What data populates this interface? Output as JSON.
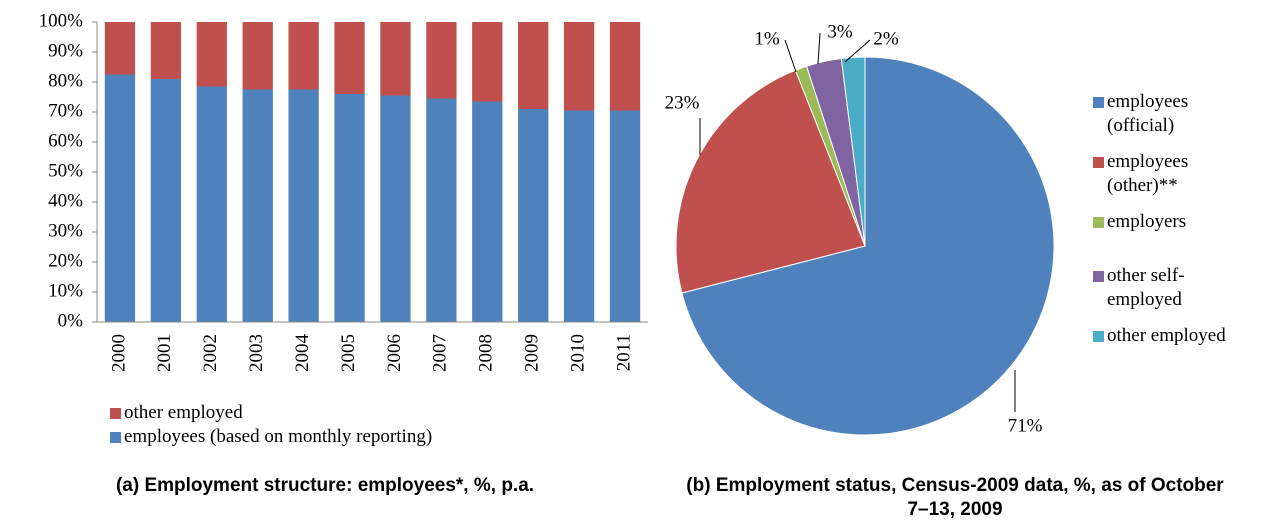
{
  "chart_data": [
    {
      "type": "stacked_bar",
      "title": "(a) Employment structure: employees*, %, p.a.",
      "categories": [
        "2000",
        "2001",
        "2002",
        "2003",
        "2004",
        "2005",
        "2006",
        "2007",
        "2008",
        "2009",
        "2010",
        "2011"
      ],
      "series": [
        {
          "name": "employees (based on monthly reporting)",
          "color": "#4f81bd",
          "values": [
            82.5,
            81,
            78.5,
            77.5,
            77.5,
            76,
            75.5,
            74.5,
            73.5,
            71,
            70.5,
            70.5
          ]
        },
        {
          "name": "other employed",
          "color": "#c0504d",
          "values": [
            17.5,
            19,
            21.5,
            22.5,
            22.5,
            24,
            24.5,
            25.5,
            26.5,
            29,
            29.5,
            29.5
          ]
        }
      ],
      "ylim": [
        0,
        100
      ],
      "yticks": [
        {
          "value": 0,
          "label": "0%"
        },
        {
          "value": 10,
          "label": "10%"
        },
        {
          "value": 20,
          "label": "20%"
        },
        {
          "value": 30,
          "label": "30%"
        },
        {
          "value": 40,
          "label": "40%"
        },
        {
          "value": 50,
          "label": "50%"
        },
        {
          "value": 60,
          "label": "60%"
        },
        {
          "value": 70,
          "label": "70%"
        },
        {
          "value": 80,
          "label": "80%"
        },
        {
          "value": 90,
          "label": "90%"
        },
        {
          "value": 100,
          "label": "100%"
        }
      ],
      "grid": false
    },
    {
      "type": "pie",
      "title": "(b) Employment status, Census-2009 data, %, as of October 7–13, 2009",
      "categories": [
        "employees (official)",
        "employees (other)**",
        "employers",
        "other self-employed",
        "other employed"
      ],
      "values": [
        71,
        23,
        1,
        3,
        2
      ],
      "value_labels": [
        "71%",
        "23%",
        "1%",
        "3%",
        "2%"
      ],
      "colors": [
        "#4f81bd",
        "#c0504d",
        "#9bbb59",
        "#8064a2",
        "#4bacc6"
      ]
    }
  ]
}
